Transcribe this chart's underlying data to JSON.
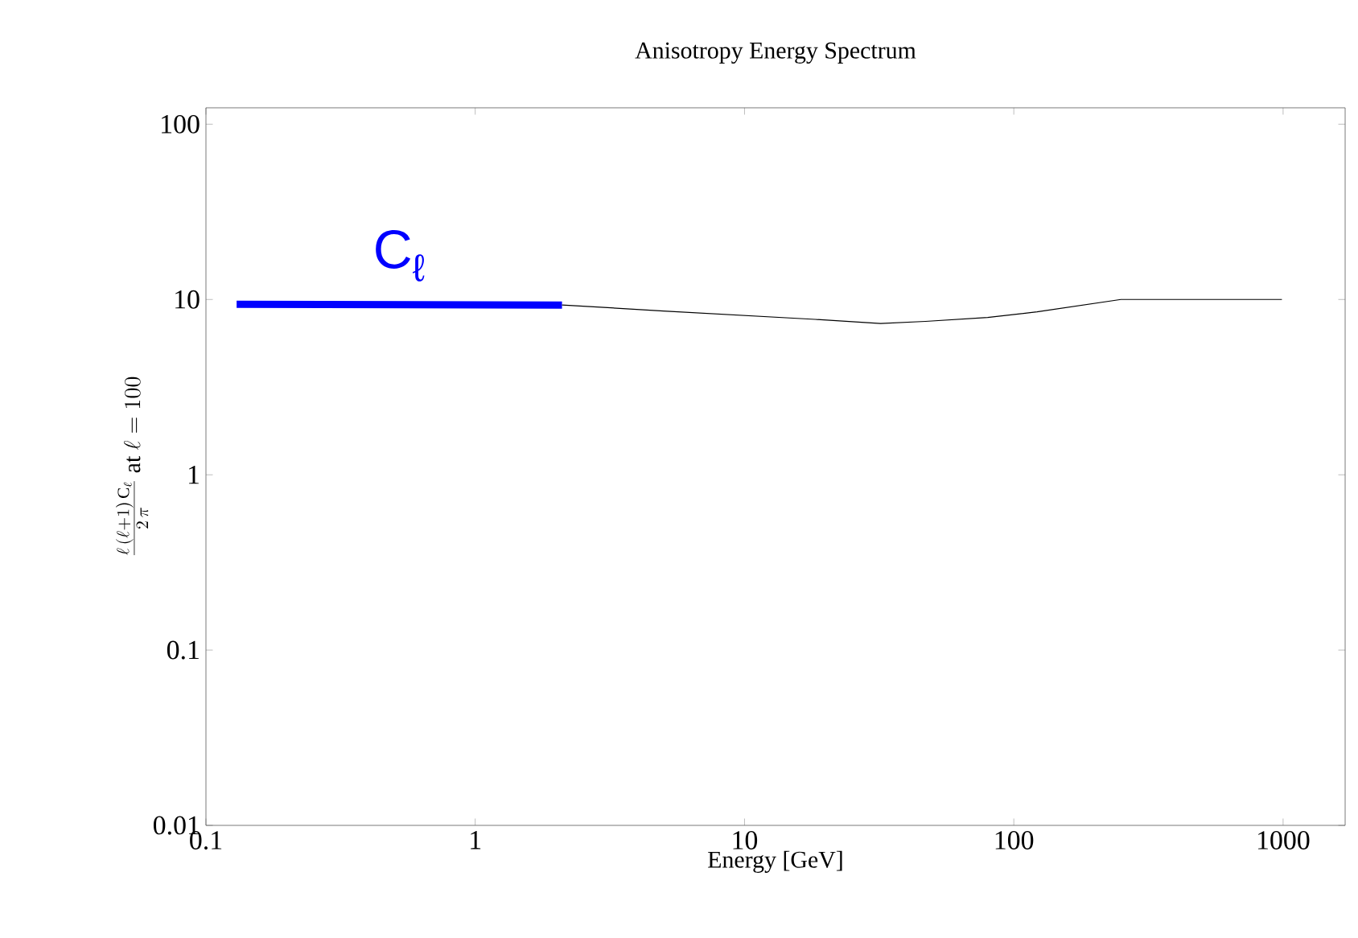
{
  "chart_data": {
    "type": "line",
    "title": "Anisotropy Energy Spectrum",
    "xlabel": "Energy [GeV]",
    "ylabel": "\\frac{\\ell\\,(\\ell+1)\\,\\mathrm{C}_\\ell}{2\\,\\pi}\\ \\mathrm{at}\\ \\ell = 100",
    "log": "xy",
    "xlim": [
      0.1,
      1700
    ],
    "ylim": [
      0.01,
      124
    ],
    "xticks": [
      0.1,
      1,
      10,
      100,
      1000
    ],
    "yticks": [
      0.01,
      0.1,
      1,
      10,
      100
    ],
    "marker": "none",
    "series": [
      {
        "name": "C$_{ℓ}$",
        "color": "#0000ff",
        "x": [
          0.13,
          2.1
        ],
        "values": [
          9.4,
          9.3
        ]
      },
      {
        "color": "#000000",
        "x": [
          2.1,
          5,
          18.3,
          32,
          47,
          80,
          122,
          250,
          315,
          990
        ],
        "values": [
          9.3,
          8.6,
          7.7,
          7.3,
          7.5,
          7.9,
          8.5,
          10,
          10,
          10
        ]
      }
    ]
  }
}
